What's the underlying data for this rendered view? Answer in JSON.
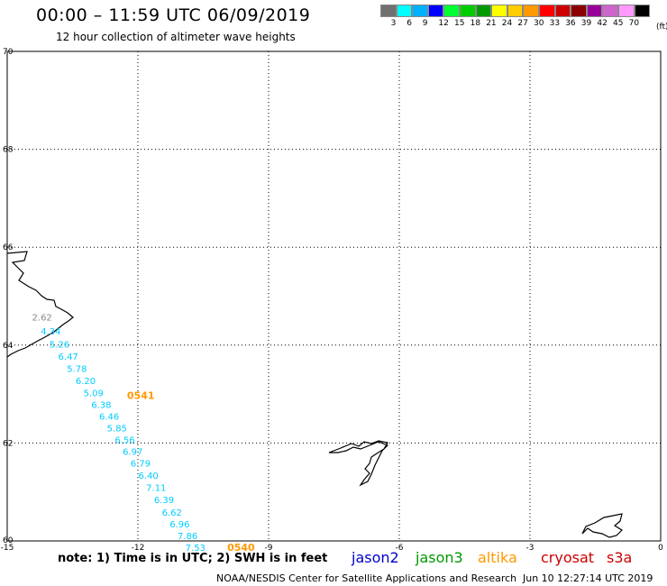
{
  "header": {
    "title": "00:00 – 11:59 UTC 06/09/2019",
    "subtitle": "12 hour collection of altimeter wave heights"
  },
  "legend": {
    "colors": [
      "#707070",
      "#00ffff",
      "#00b0ff",
      "#0000ff",
      "#00ff33",
      "#00cc00",
      "#009900",
      "#ffff00",
      "#ffcc00",
      "#ff9900",
      "#ff0000",
      "#cc0000",
      "#8b0000",
      "#990099",
      "#cc66cc",
      "#ff99ff",
      "#000000"
    ],
    "labels": [
      "3",
      "6",
      "9",
      "12",
      "15",
      "18",
      "21",
      "24",
      "27",
      "30",
      "33",
      "36",
      "39",
      "42",
      "45",
      "70"
    ],
    "unit": "(ft)"
  },
  "map": {
    "lon_range": [
      -15,
      0
    ],
    "lat_range": [
      60,
      70
    ],
    "lon_ticks": [
      "-15",
      "-12",
      "-9",
      "-6",
      "-3",
      "0"
    ],
    "lat_ticks": [
      "60",
      "62",
      "64",
      "66",
      "68",
      "70"
    ],
    "grid": "dotted"
  },
  "track": {
    "color": "#00ccff",
    "points": [
      {
        "lon": -14.2,
        "lat": 64.5,
        "swh": "2.62",
        "color": "#888888"
      },
      {
        "lon": -14.0,
        "lat": 64.22,
        "swh": "4.34"
      },
      {
        "lon": -13.8,
        "lat": 63.95,
        "swh": "5.26"
      },
      {
        "lon": -13.6,
        "lat": 63.7,
        "swh": "6.47"
      },
      {
        "lon": -13.4,
        "lat": 63.45,
        "swh": "5.78"
      },
      {
        "lon": -13.2,
        "lat": 63.2,
        "swh": "6.20"
      },
      {
        "lon": -13.02,
        "lat": 62.96,
        "swh": "5.09"
      },
      {
        "lon": -12.84,
        "lat": 62.72,
        "swh": "6.38"
      },
      {
        "lon": -12.66,
        "lat": 62.48,
        "swh": "6.46"
      },
      {
        "lon": -12.48,
        "lat": 62.24,
        "swh": "5.85"
      },
      {
        "lon": -12.3,
        "lat": 62.0,
        "swh": "6.56"
      },
      {
        "lon": -12.12,
        "lat": 61.76,
        "swh": "6.97"
      },
      {
        "lon": -11.94,
        "lat": 61.52,
        "swh": "6.79"
      },
      {
        "lon": -11.76,
        "lat": 61.27,
        "swh": "6.40"
      },
      {
        "lon": -11.58,
        "lat": 61.02,
        "swh": "7.11"
      },
      {
        "lon": -11.4,
        "lat": 60.77,
        "swh": "6.39"
      },
      {
        "lon": -11.22,
        "lat": 60.52,
        "swh": "6.62"
      },
      {
        "lon": -11.04,
        "lat": 60.28,
        "swh": "6.96"
      },
      {
        "lon": -10.86,
        "lat": 60.04,
        "swh": "7.86"
      },
      {
        "lon": -10.68,
        "lat": 59.8,
        "swh": "7.53"
      }
    ],
    "time_labels": [
      {
        "text": "0541",
        "lon": -12.25,
        "lat": 62.9,
        "color": "#ff9900"
      },
      {
        "text": "0540",
        "lon": -9.95,
        "lat": 59.8,
        "color": "#ff9900"
      }
    ]
  },
  "note": "note: 1) Time is in UTC; 2) SWH is in feet",
  "satellites": [
    {
      "name": "jason2",
      "color": "#0000cc"
    },
    {
      "name": "jason3",
      "color": "#009900"
    },
    {
      "name": "altika",
      "color": "#ff9900"
    },
    {
      "name": "cryosat",
      "color": "#cc0000"
    },
    {
      "name": "s3a",
      "color": "#cc0000"
    }
  ],
  "footer": {
    "credit": "NOAA/NESDIS Center for Satellite Applications and Research",
    "timestamp": "Jun 10 12:27:14 UTC 2019"
  }
}
